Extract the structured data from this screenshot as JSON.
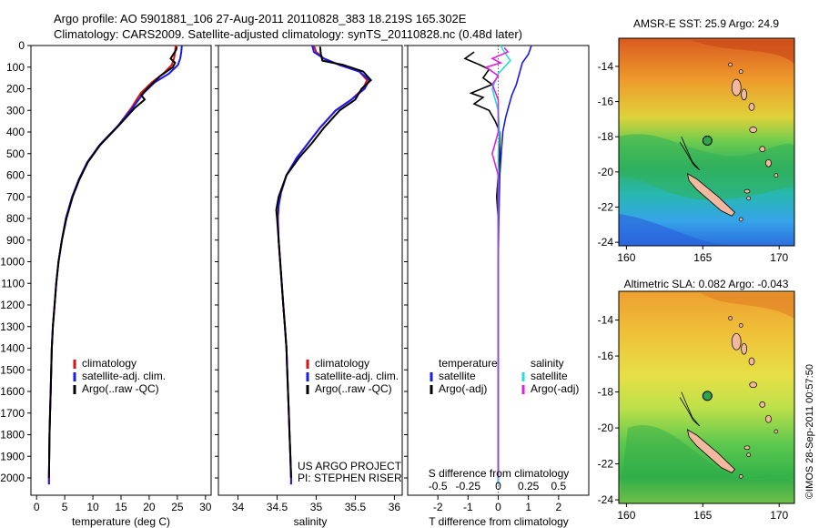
{
  "header": {
    "line1": "Argo profile: AO 5901881_106 27-Aug-2011 20110828_383 18.219S 165.302E",
    "line2": "Climatology: CARS2009. Satellite-adjusted climatology: synTS_20110828.nc (0.48d later)"
  },
  "colors": {
    "climatology": "#dd1111",
    "satellite": "#1a1aee",
    "argo": "#000000",
    "sat_salinity": "#22dddd",
    "argo_salinity": "#dd22dd"
  },
  "chart_data": [
    {
      "type": "line",
      "id": "temperature",
      "xlabel": "temperature (deg C)",
      "ylabel": "",
      "xlim": [
        -1,
        31
      ],
      "ylim": [
        2080,
        0
      ],
      "xticks": [
        0,
        5,
        10,
        15,
        20,
        25,
        30
      ],
      "yticks": [
        0,
        100,
        200,
        300,
        400,
        500,
        600,
        700,
        800,
        900,
        1000,
        1100,
        1200,
        1300,
        1400,
        1500,
        1600,
        1700,
        1800,
        1900,
        2000
      ],
      "legend": [
        "climatology",
        "satellite-adj. clim.",
        "Argo(..raw -QC)"
      ],
      "series": [
        {
          "name": "climatology",
          "color_key": "climatology",
          "points": [
            [
              24.7,
              0
            ],
            [
              24.6,
              30
            ],
            [
              24.4,
              60
            ],
            [
              24.0,
              90
            ],
            [
              22.5,
              130
            ],
            [
              20.5,
              170
            ],
            [
              18.5,
              220
            ],
            [
              16.8,
              290
            ],
            [
              14.5,
              370
            ],
            [
              11.2,
              460
            ],
            [
              9.0,
              540
            ],
            [
              7.5,
              620
            ],
            [
              6.3,
              700
            ],
            [
              5.2,
              800
            ],
            [
              4.5,
              900
            ],
            [
              3.9,
              1000
            ],
            [
              3.5,
              1100
            ],
            [
              3.2,
              1200
            ],
            [
              2.9,
              1300
            ],
            [
              2.7,
              1400
            ],
            [
              2.6,
              1500
            ],
            [
              2.5,
              1600
            ],
            [
              2.4,
              1700
            ],
            [
              2.3,
              1800
            ],
            [
              2.25,
              1900
            ],
            [
              2.2,
              2000
            ],
            [
              2.2,
              2030
            ]
          ]
        },
        {
          "name": "satellite-adj. clim.",
          "color_key": "satellite",
          "points": [
            [
              25.8,
              0
            ],
            [
              25.7,
              30
            ],
            [
              25.5,
              60
            ],
            [
              25.1,
              90
            ],
            [
              23.5,
              130
            ],
            [
              21.0,
              170
            ],
            [
              19.0,
              220
            ],
            [
              17.0,
              290
            ],
            [
              14.5,
              370
            ],
            [
              11.2,
              460
            ],
            [
              9.0,
              540
            ],
            [
              7.5,
              620
            ],
            [
              6.3,
              700
            ],
            [
              5.2,
              800
            ],
            [
              4.5,
              900
            ],
            [
              3.9,
              1000
            ],
            [
              3.5,
              1100
            ],
            [
              3.2,
              1200
            ],
            [
              2.9,
              1300
            ],
            [
              2.7,
              1400
            ],
            [
              2.6,
              1500
            ],
            [
              2.5,
              1600
            ],
            [
              2.4,
              1700
            ],
            [
              2.3,
              1800
            ],
            [
              2.25,
              1900
            ],
            [
              2.2,
              2000
            ],
            [
              2.2,
              2030
            ]
          ]
        },
        {
          "name": "Argo(..raw -QC)",
          "color_key": "argo",
          "points": [
            [
              24.9,
              5
            ],
            [
              24.8,
              20
            ],
            [
              24.3,
              40
            ],
            [
              23.8,
              60
            ],
            [
              24.6,
              80
            ],
            [
              24.2,
              100
            ],
            [
              22.0,
              140
            ],
            [
              20.8,
              170
            ],
            [
              19.6,
              200
            ],
            [
              18.6,
              230
            ],
            [
              19.2,
              250
            ],
            [
              17.4,
              290
            ],
            [
              14.6,
              370
            ],
            [
              11.3,
              460
            ],
            [
              9.1,
              540
            ],
            [
              7.6,
              620
            ],
            [
              6.4,
              700
            ],
            [
              5.3,
              800
            ],
            [
              4.5,
              900
            ],
            [
              3.9,
              1000
            ],
            [
              3.5,
              1100
            ],
            [
              3.2,
              1200
            ],
            [
              2.9,
              1300
            ],
            [
              2.7,
              1400
            ],
            [
              2.6,
              1500
            ],
            [
              2.5,
              1600
            ],
            [
              2.4,
              1700
            ],
            [
              2.3,
              1800
            ],
            [
              2.25,
              1900
            ],
            [
              2.2,
              2000
            ]
          ]
        }
      ]
    },
    {
      "type": "line",
      "id": "salinity",
      "xlabel": "salinity",
      "ylabel": "",
      "xlim": [
        33.75,
        36.1
      ],
      "ylim": [
        2080,
        0
      ],
      "xticks": [
        34,
        34.5,
        35,
        35.5,
        36
      ],
      "legend": [
        "climatology",
        "satellite-adj. clim.",
        "Argo(..raw -QC)"
      ],
      "annotation": [
        "US ARGO PROJECT",
        "PI: STEPHEN RISER"
      ],
      "series": [
        {
          "name": "climatology",
          "color_key": "climatology",
          "points": [
            [
              34.97,
              0
            ],
            [
              35.0,
              30
            ],
            [
              35.1,
              60
            ],
            [
              35.3,
              90
            ],
            [
              35.55,
              120
            ],
            [
              35.65,
              160
            ],
            [
              35.6,
              200
            ],
            [
              35.45,
              250
            ],
            [
              35.25,
              300
            ],
            [
              35.05,
              380
            ],
            [
              34.9,
              450
            ],
            [
              34.75,
              520
            ],
            [
              34.62,
              600
            ],
            [
              34.55,
              680
            ],
            [
              34.52,
              740
            ],
            [
              34.51,
              800
            ],
            [
              34.52,
              900
            ],
            [
              34.54,
              1000
            ],
            [
              34.56,
              1100
            ],
            [
              34.58,
              1200
            ],
            [
              34.6,
              1300
            ],
            [
              34.62,
              1400
            ],
            [
              34.63,
              1500
            ],
            [
              34.64,
              1600
            ],
            [
              34.65,
              1700
            ],
            [
              34.66,
              1800
            ],
            [
              34.67,
              1900
            ],
            [
              34.68,
              2000
            ],
            [
              34.68,
              2030
            ]
          ]
        },
        {
          "name": "satellite-adj. clim.",
          "color_key": "satellite",
          "points": [
            [
              34.95,
              0
            ],
            [
              34.97,
              30
            ],
            [
              35.1,
              60
            ],
            [
              35.3,
              90
            ],
            [
              35.55,
              120
            ],
            [
              35.68,
              160
            ],
            [
              35.62,
              200
            ],
            [
              35.45,
              250
            ],
            [
              35.25,
              300
            ],
            [
              35.05,
              380
            ],
            [
              34.9,
              450
            ],
            [
              34.75,
              520
            ],
            [
              34.62,
              600
            ],
            [
              34.55,
              680
            ],
            [
              34.52,
              740
            ],
            [
              34.51,
              800
            ],
            [
              34.52,
              900
            ],
            [
              34.54,
              1000
            ],
            [
              34.56,
              1100
            ],
            [
              34.58,
              1200
            ],
            [
              34.6,
              1300
            ],
            [
              34.62,
              1400
            ],
            [
              34.63,
              1500
            ],
            [
              34.64,
              1600
            ],
            [
              34.65,
              1700
            ],
            [
              34.66,
              1800
            ],
            [
              34.67,
              1900
            ],
            [
              34.68,
              2000
            ],
            [
              34.68,
              2030
            ]
          ]
        },
        {
          "name": "Argo(..raw -QC)",
          "color_key": "argo",
          "points": [
            [
              35.05,
              5
            ],
            [
              35.06,
              40
            ],
            [
              35.08,
              70
            ],
            [
              35.35,
              90
            ],
            [
              35.6,
              120
            ],
            [
              35.7,
              160
            ],
            [
              35.58,
              200
            ],
            [
              35.5,
              250
            ],
            [
              35.3,
              300
            ],
            [
              35.1,
              380
            ],
            [
              34.95,
              450
            ],
            [
              34.78,
              520
            ],
            [
              34.62,
              600
            ],
            [
              34.52,
              700
            ],
            [
              34.49,
              760
            ],
            [
              34.5,
              800
            ],
            [
              34.52,
              900
            ],
            [
              34.54,
              1000
            ],
            [
              34.56,
              1100
            ],
            [
              34.58,
              1200
            ],
            [
              34.6,
              1300
            ],
            [
              34.62,
              1400
            ],
            [
              34.63,
              1500
            ],
            [
              34.64,
              1600
            ],
            [
              34.65,
              1700
            ],
            [
              34.66,
              1800
            ],
            [
              34.67,
              1900
            ],
            [
              34.68,
              2000
            ]
          ]
        }
      ]
    },
    {
      "type": "line",
      "id": "difference",
      "xlabel": "T difference from climatology",
      "xlabel_top": "S difference from climatology",
      "xlim": [
        -3,
        3
      ],
      "ylim": [
        2080,
        0
      ],
      "xticks": [
        -2,
        -1,
        0,
        1,
        2
      ],
      "xticks_top": [
        -0.5,
        -0.25,
        0,
        0.25,
        0.5
      ],
      "legend_titles": [
        "temperature",
        "salinity"
      ],
      "legend": [
        "satellite",
        "Argo(-adj)",
        "satellite",
        "Argo(-adj)"
      ],
      "series": [
        {
          "name": "satellite",
          "color_key": "satellite",
          "group": "temperature",
          "points": [
            [
              1.1,
              0
            ],
            [
              1.0,
              40
            ],
            [
              0.8,
              80
            ],
            [
              0.7,
              130
            ],
            [
              0.6,
              180
            ],
            [
              0.45,
              230
            ],
            [
              0.35,
              280
            ],
            [
              0.25,
              330
            ],
            [
              0.15,
              400
            ],
            [
              0.1,
              500
            ],
            [
              0.05,
              600
            ],
            [
              0.02,
              800
            ],
            [
              0,
              1000
            ],
            [
              0,
              2030
            ]
          ]
        },
        {
          "name": "Argo(-adj)",
          "color_key": "argo",
          "group": "temperature",
          "points": [
            [
              -0.8,
              30
            ],
            [
              -1.1,
              60
            ],
            [
              -0.6,
              90
            ],
            [
              -0.3,
              110
            ],
            [
              -0.5,
              150
            ],
            [
              -0.2,
              180
            ],
            [
              -0.9,
              220
            ],
            [
              -0.5,
              240
            ],
            [
              -0.8,
              270
            ],
            [
              -0.3,
              300
            ],
            [
              -0.1,
              350
            ],
            [
              0.05,
              400
            ],
            [
              0.05,
              500
            ],
            [
              0,
              600
            ],
            [
              -0.05,
              700
            ],
            [
              0,
              800
            ],
            [
              0,
              1000
            ],
            [
              0,
              2000
            ]
          ]
        },
        {
          "name": "satellite",
          "color_key": "sat_salinity",
          "group": "salinity",
          "points": [
            [
              0.02,
              0
            ],
            [
              0.05,
              30
            ],
            [
              0.1,
              70
            ],
            [
              0.0,
              130
            ],
            [
              -0.05,
              200
            ],
            [
              0.0,
              300
            ],
            [
              0.01,
              400
            ],
            [
              0,
              500
            ],
            [
              0,
              2030
            ]
          ]
        },
        {
          "name": "Argo(-adj)",
          "color_key": "argo_salinity",
          "group": "salinity",
          "points": [
            [
              0.05,
              10
            ],
            [
              0.08,
              30
            ],
            [
              -0.05,
              60
            ],
            [
              0.02,
              80
            ],
            [
              -0.1,
              100
            ],
            [
              0.0,
              140
            ],
            [
              -0.05,
              180
            ],
            [
              0.0,
              250
            ],
            [
              0.0,
              400
            ],
            [
              -0.05,
              500
            ],
            [
              0.0,
              600
            ],
            [
              0.0,
              800
            ],
            [
              0,
              2000
            ]
          ]
        }
      ]
    },
    {
      "type": "heatmap",
      "id": "sst_map",
      "title": "AMSR-E SST: 25.9 Argo: 24.9",
      "xticks": [
        160,
        165,
        170
      ],
      "yticks": [
        -14,
        -16,
        -18,
        -20,
        -22,
        -24
      ],
      "xlim": [
        159.5,
        171
      ],
      "ylim": [
        -24.2,
        -12.4
      ],
      "argo_point": [
        165.3,
        -18.22
      ]
    },
    {
      "type": "heatmap",
      "id": "sla_map",
      "title": "Altimetric SLA: 0.082 Argo: -0.043",
      "xticks": [
        160,
        165,
        170
      ],
      "yticks": [
        -14,
        -16,
        -18,
        -20,
        -22,
        -24
      ],
      "xlim": [
        159.5,
        171
      ],
      "ylim": [
        -24.2,
        -12.4
      ],
      "argo_point": [
        165.3,
        -18.22
      ]
    }
  ],
  "footer": {
    "credit": "©IMOS 28-Sep-2011 00:57:50"
  }
}
